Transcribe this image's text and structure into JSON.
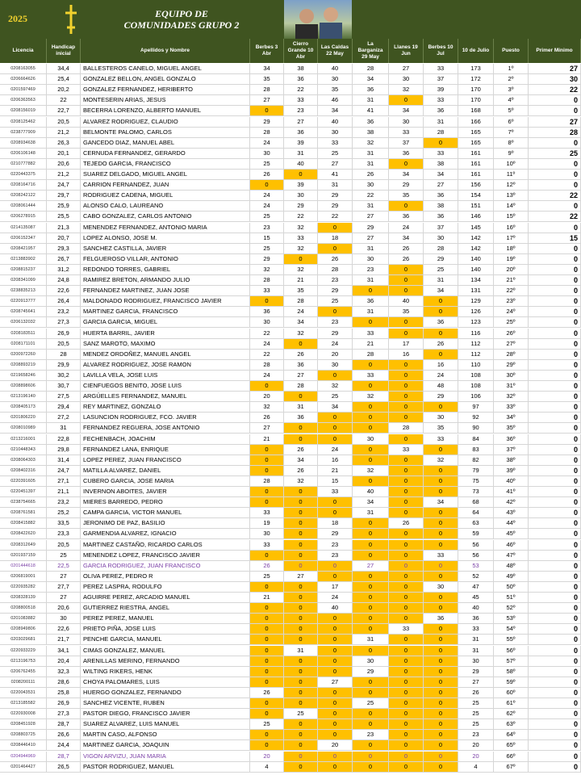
{
  "header": {
    "year": "2025",
    "title_lines": [
      "EQUIPO DE",
      "COMUNIDADES GRUPO 2"
    ]
  },
  "table": {
    "columns": [
      "Licencia",
      "Handicap inicial",
      "Apellidos y Nombre",
      "Berbes 3 Abr",
      "Cierro Grande 10 Abr",
      "Las Caldas 22 May",
      "La Barganiza 29 May",
      "Llanes 19 Jun",
      "Berbes 10 Jul",
      "10 de Julio",
      "Puesto",
      "Primer Minimo"
    ],
    "zero_color": "#ffc000",
    "rows": [
      {
        "cells": [
          "0208163055",
          "34,4",
          "BALLESTEROS CANELO, MIGUEL ANGEL",
          34,
          38,
          40,
          28,
          27,
          33,
          173,
          "1º",
          27
        ]
      },
      {
        "cells": [
          "0206664626",
          "25,4",
          "GONZALEZ BELLON, ANGEL GONZALO",
          35,
          36,
          30,
          34,
          30,
          37,
          172,
          "2º",
          30
        ]
      },
      {
        "cells": [
          "0201597469",
          "20,2",
          "GONZALEZ FERNANDEZ, HERIBERTO",
          28,
          22,
          35,
          36,
          32,
          39,
          170,
          "3º",
          22
        ]
      },
      {
        "cells": [
          "0206363563",
          "22",
          "MONTESERIN ARIAS, JESUS",
          27,
          33,
          46,
          31,
          0,
          33,
          170,
          "4º",
          0
        ]
      },
      {
        "cells": [
          "0208156019",
          "22,7",
          "BECERRA LORENZO, ALBERTO MANUEL",
          0,
          23,
          34,
          41,
          34,
          36,
          168,
          "5º",
          0
        ]
      },
      {
        "cells": [
          "0208125462",
          "20,5",
          "ALVAREZ RODRIGUEZ, CLAUDIO",
          29,
          27,
          40,
          36,
          30,
          31,
          166,
          "6º",
          27
        ]
      },
      {
        "cells": [
          "0238777909",
          "21,2",
          "BELMONTE PALOMO, CARLOS",
          28,
          36,
          30,
          38,
          33,
          28,
          165,
          "7º",
          28
        ]
      },
      {
        "cells": [
          "0208934638",
          "26,3",
          "GANCEDO DIAZ, MANUEL ABEL",
          24,
          39,
          33,
          32,
          37,
          0,
          165,
          "8º",
          0
        ]
      },
      {
        "cells": [
          "0206106148",
          "20,1",
          "CERNUDA FERNANDEZ, GERARDO",
          30,
          31,
          25,
          31,
          36,
          33,
          161,
          "9º",
          25
        ]
      },
      {
        "cells": [
          "0210777882",
          "20,6",
          "TEJEDO GARCIA, FRANCISCO",
          25,
          40,
          27,
          31,
          0,
          38,
          161,
          "10º",
          0
        ]
      },
      {
        "cells": [
          "0220443375",
          "21,2",
          "SUAREZ DELGADO, MIGUEL ANGEL",
          26,
          0,
          41,
          26,
          34,
          34,
          161,
          "11º",
          0
        ]
      },
      {
        "cells": [
          "0208164716",
          "24,7",
          "CARRION FERNANDEZ, JUAN",
          0,
          39,
          31,
          30,
          29,
          27,
          156,
          "12º",
          0
        ]
      },
      {
        "cells": [
          "0208242122",
          "29,7",
          "RODRIGUEZ CADENA, MIGUEL",
          24,
          30,
          29,
          22,
          35,
          36,
          154,
          "13º",
          22
        ]
      },
      {
        "cells": [
          "0208061444",
          "25,9",
          "ALONSO CALO, LAUREANO",
          24,
          29,
          29,
          31,
          0,
          38,
          151,
          "14º",
          0
        ]
      },
      {
        "cells": [
          "0206278915",
          "25,5",
          "CABO GONZALEZ, CARLOS ANTONIO",
          25,
          22,
          22,
          27,
          36,
          36,
          146,
          "15º",
          22
        ]
      },
      {
        "cells": [
          "0214135087",
          "21,3",
          "MENENDEZ FERNANDEZ, ANTONIO MARIA",
          23,
          32,
          0,
          29,
          24,
          37,
          145,
          "16º",
          0
        ]
      },
      {
        "cells": [
          "0206152347",
          "20,7",
          "LOPEZ ALONSO, JOSE M.",
          15,
          33,
          18,
          27,
          34,
          30,
          142,
          "17º",
          15
        ]
      },
      {
        "cells": [
          "0208421957",
          "29,3",
          "SANCHEZ CASTILLA, JAVIER",
          25,
          32,
          0,
          31,
          26,
          28,
          142,
          "18º",
          0
        ]
      },
      {
        "cells": [
          "0213883902",
          "26,7",
          "FELGUEROSO VILLAR, ANTONIO",
          29,
          0,
          26,
          30,
          26,
          29,
          140,
          "19º",
          0
        ]
      },
      {
        "cells": [
          "0208815237",
          "31,2",
          "REDONDO TORRES, GABRIEL",
          32,
          32,
          28,
          23,
          0,
          25,
          140,
          "20º",
          0
        ]
      },
      {
        "cells": [
          "0208341099",
          "24,8",
          "RAMIREZ BRETON, ARMANDO JULIO",
          28,
          21,
          23,
          31,
          0,
          31,
          134,
          "21º",
          0
        ]
      },
      {
        "cells": [
          "0238835213",
          "22,6",
          "FERNANDEZ MARTINEZ, JUAN JOSE",
          33,
          35,
          29,
          0,
          0,
          34,
          131,
          "22º",
          0
        ]
      },
      {
        "cells": [
          "0220913777",
          "26,4",
          "MALDONADO RODRIGUEZ, FRANCISCO JAVIER",
          0,
          28,
          25,
          36,
          40,
          0,
          129,
          "23º",
          0
        ]
      },
      {
        "cells": [
          "0208745641",
          "23,2",
          "MARTINEZ GARCIA, FRANCISCO",
          36,
          24,
          0,
          31,
          35,
          0,
          126,
          "24º",
          0
        ]
      },
      {
        "cells": [
          "0206132032",
          "27,3",
          "GARCIA GARCIA, MIGUEL",
          30,
          34,
          23,
          0,
          0,
          36,
          123,
          "25º",
          0
        ]
      },
      {
        "cells": [
          "0208183511",
          "26,9",
          "HUERTA BARRIL, JAVIER",
          22,
          32,
          29,
          33,
          0,
          0,
          116,
          "26º",
          0
        ]
      },
      {
        "cells": [
          "0208171101",
          "20,5",
          "SANZ MAROTO, MAXIMO",
          24,
          0,
          24,
          21,
          17,
          26,
          112,
          "27º",
          0
        ]
      },
      {
        "cells": [
          "0200972260",
          "28",
          "MENDEZ ORDOÑEZ, MANUEL ANGEL",
          22,
          26,
          20,
          28,
          16,
          0,
          112,
          "28º",
          0
        ]
      },
      {
        "cells": [
          "0208893219",
          "29,9",
          "ALVAREZ RODRIGUEZ, JOSE RAMON",
          28,
          36,
          30,
          0,
          0,
          16,
          110,
          "29º",
          0
        ]
      },
      {
        "cells": [
          "0219658246",
          "30,2",
          "LAVILLA VELA, JOSE LUIS",
          24,
          27,
          0,
          33,
          0,
          24,
          108,
          "30º",
          0
        ]
      },
      {
        "cells": [
          "0208898606",
          "30,7",
          "CIENFUEGOS BENITO, JOSE LUIS",
          0,
          28,
          32,
          0,
          0,
          48,
          108,
          "31º",
          0
        ]
      },
      {
        "cells": [
          "0213196140",
          "27,5",
          "ARGÜELLES FERNANDEZ, MANUEL",
          20,
          0,
          25,
          32,
          0,
          29,
          106,
          "32º",
          0
        ]
      },
      {
        "cells": [
          "0208405173",
          "29,4",
          "REY MARTINEZ, GONZALO",
          32,
          31,
          34,
          0,
          0,
          0,
          97,
          "33º",
          0
        ]
      },
      {
        "cells": [
          "0201806220",
          "27,2",
          "LASUNCION RODRIGUEZ, FCO. JAVIER",
          26,
          36,
          0,
          0,
          0,
          30,
          92,
          "34º",
          0
        ]
      },
      {
        "cells": [
          "0208010989",
          "31",
          "FERNANDEZ REGUERA, JOSE ANTONIO",
          27,
          0,
          0,
          0,
          28,
          35,
          90,
          "35º",
          0
        ]
      },
      {
        "cells": [
          "0213216001",
          "22,8",
          "FECHENBACH, JOACHIM",
          21,
          0,
          0,
          30,
          0,
          33,
          84,
          "36º",
          0
        ]
      },
      {
        "cells": [
          "0210448343",
          "29,8",
          "FERNANDEZ LANA, ENRIQUE",
          0,
          26,
          24,
          0,
          33,
          0,
          83,
          "37º",
          0
        ]
      },
      {
        "cells": [
          "0208064303",
          "31,4",
          "LOPEZ PEREZ, JUAN FRANCISCO",
          0,
          34,
          16,
          0,
          0,
          32,
          82,
          "38º",
          0
        ]
      },
      {
        "cells": [
          "0208402316",
          "24,7",
          "MATILLA ALVAREZ, DANIEL",
          0,
          26,
          21,
          32,
          0,
          0,
          79,
          "39º",
          0
        ]
      },
      {
        "cells": [
          "0220391605",
          "27,1",
          "CUBERO GARCIA, JOSE MARIA",
          28,
          32,
          15,
          0,
          0,
          0,
          75,
          "40º",
          0
        ]
      },
      {
        "cells": [
          "0220451397",
          "21,1",
          "INVERNON ABOITES, JAVIER",
          0,
          0,
          33,
          40,
          0,
          0,
          73,
          "41º",
          0
        ]
      },
      {
        "cells": [
          "0238754665",
          "23,2",
          "MIERES BARREDO, PEDRO",
          0,
          0,
          0,
          34,
          0,
          34,
          68,
          "42º",
          0
        ]
      },
      {
        "cells": [
          "0208761581",
          "25,2",
          "CAMPA GARCIA, VICTOR MANUEL",
          33,
          0,
          0,
          31,
          0,
          0,
          64,
          "43º",
          0
        ]
      },
      {
        "cells": [
          "0208415882",
          "33,5",
          "JERONIMO DE PAZ, BASILIO",
          19,
          0,
          18,
          0,
          26,
          0,
          63,
          "44º",
          0
        ]
      },
      {
        "cells": [
          "0208422620",
          "23,3",
          "GARMENDIA ALVAREZ, IGNACIO",
          30,
          0,
          29,
          0,
          0,
          0,
          59,
          "45º",
          0
        ]
      },
      {
        "cells": [
          "0208312649",
          "20,5",
          "MARTINEZ CASTAÑO, RICARDO CARLOS",
          33,
          0,
          23,
          0,
          0,
          0,
          56,
          "46º",
          0
        ]
      },
      {
        "cells": [
          "0201937159",
          "25",
          "MENENDEZ LOPEZ, FRANCISCO JAVIER",
          0,
          0,
          23,
          0,
          0,
          33,
          56,
          "47º",
          0
        ]
      },
      {
        "cells": [
          "0201444618",
          "22,5",
          "GARCIA RODRIGUEZ, JUAN FRANCISCO",
          26,
          0,
          0,
          27,
          0,
          0,
          53,
          "48º",
          0
        ],
        "color": "#7a3fa6"
      },
      {
        "cells": [
          "0206819001",
          "27",
          "OLIVA PEREZ, PEDRO R",
          25,
          27,
          0,
          0,
          0,
          0,
          52,
          "49º",
          0
        ]
      },
      {
        "cells": [
          "0220935282",
          "27,7",
          "PEREZ LASPRA, RODULFO",
          0,
          0,
          17,
          0,
          0,
          30,
          47,
          "50º",
          0
        ]
      },
      {
        "cells": [
          "0208328139",
          "27",
          "AGUIRRE PEREZ, ARCADIO MANUEL",
          21,
          0,
          24,
          0,
          0,
          0,
          45,
          "51º",
          0
        ]
      },
      {
        "cells": [
          "0208800518",
          "20,6",
          "GUTIERREZ RIESTRA, ANGEL",
          0,
          0,
          40,
          0,
          0,
          0,
          40,
          "52º",
          0
        ]
      },
      {
        "cells": [
          "0201083882",
          "30",
          "PEREZ PEREZ, MANUEL",
          0,
          0,
          0,
          0,
          0,
          36,
          36,
          "53º",
          0
        ]
      },
      {
        "cells": [
          "0208949806",
          "22,6",
          "PRIETO PIÑA, JOSE LUIS",
          0,
          0,
          0,
          0,
          33,
          0,
          33,
          "54º",
          0
        ]
      },
      {
        "cells": [
          "0203029681",
          "21,7",
          "PENCHE GARCIA, MANUEL",
          0,
          0,
          0,
          31,
          0,
          0,
          31,
          "55º",
          0
        ]
      },
      {
        "cells": [
          "0220933229",
          "34,1",
          "CIMAS GONZALEZ, MANUEL",
          0,
          31,
          0,
          0,
          0,
          0,
          31,
          "56º",
          0
        ]
      },
      {
        "cells": [
          "0213196753",
          "20,4",
          "ARENILLAS MERINO, FERNANDO",
          0,
          0,
          0,
          30,
          0,
          0,
          30,
          "57º",
          0
        ]
      },
      {
        "cells": [
          "0206762455",
          "32,3",
          "WILTING RIKERS, HENK",
          0,
          0,
          0,
          29,
          0,
          0,
          29,
          "58º",
          0
        ]
      },
      {
        "cells": [
          "0208200111",
          "28,6",
          "CHOYA PALOMARES, LUIS",
          0,
          0,
          27,
          0,
          0,
          0,
          27,
          "59º",
          0
        ]
      },
      {
        "cells": [
          "0220043531",
          "25,8",
          "HUERGO GONZALEZ, FERNANDO",
          26,
          0,
          0,
          0,
          0,
          0,
          26,
          "60º",
          0
        ]
      },
      {
        "cells": [
          "0213185582",
          "26,9",
          "SANCHEZ VICENTE, RUBEN",
          0,
          0,
          0,
          25,
          0,
          0,
          25,
          "61º",
          0
        ]
      },
      {
        "cells": [
          "0220930008",
          "27,3",
          "PASTOR DIEGO, FRANCISCO JAVIER",
          0,
          25,
          0,
          0,
          0,
          0,
          25,
          "62º",
          0
        ]
      },
      {
        "cells": [
          "0208451928",
          "28,7",
          "SUAREZ ALVAREZ, LUIS MANUEL",
          25,
          0,
          0,
          0,
          0,
          0,
          25,
          "63º",
          0
        ]
      },
      {
        "cells": [
          "0208803725",
          "26,6",
          "MARTIN CASO, ALFONSO",
          0,
          0,
          0,
          23,
          0,
          0,
          23,
          "64º",
          0
        ]
      },
      {
        "cells": [
          "0208446410",
          "24,4",
          "MARTINEZ GARCIA, JOAQUIN",
          0,
          0,
          20,
          0,
          0,
          0,
          20,
          "65º",
          0
        ]
      },
      {
        "cells": [
          "0204944969",
          "28,7",
          "VIGON ARVIZU, JUAN MARIA",
          20,
          0,
          0,
          0,
          0,
          0,
          20,
          "66º",
          0
        ],
        "color": "#7a3fa6"
      },
      {
        "cells": [
          "0201464427",
          "26,5",
          "PASTOR RODRIGUEZ, MANUEL",
          4,
          0,
          0,
          0,
          0,
          0,
          4,
          "67º",
          0
        ]
      }
    ]
  }
}
